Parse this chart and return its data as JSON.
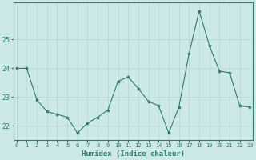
{
  "x": [
    0,
    1,
    2,
    3,
    4,
    5,
    6,
    7,
    8,
    9,
    10,
    11,
    12,
    13,
    14,
    15,
    16,
    17,
    18,
    19,
    20,
    21,
    22,
    23
  ],
  "y": [
    24.0,
    24.0,
    22.9,
    22.5,
    22.4,
    22.3,
    21.75,
    22.1,
    22.3,
    22.55,
    23.55,
    23.7,
    23.3,
    22.85,
    22.7,
    21.75,
    22.65,
    24.5,
    26.0,
    24.8,
    23.9,
    23.85,
    22.7,
    22.65
  ],
  "line_color": "#2e7d6e",
  "marker": "*",
  "marker_size": 3.0,
  "bg_color": "#cce8e8",
  "grid_color": "#b8d8d8",
  "axis_color": "#2e7d6e",
  "xlabel": "Humidex (Indice chaleur)",
  "ylim": [
    21.5,
    26.3
  ],
  "yticks": [
    22,
    23,
    24,
    25
  ],
  "xlim": [
    -0.3,
    23.3
  ],
  "title": "",
  "figsize": [
    3.2,
    2.0
  ],
  "dpi": 100
}
